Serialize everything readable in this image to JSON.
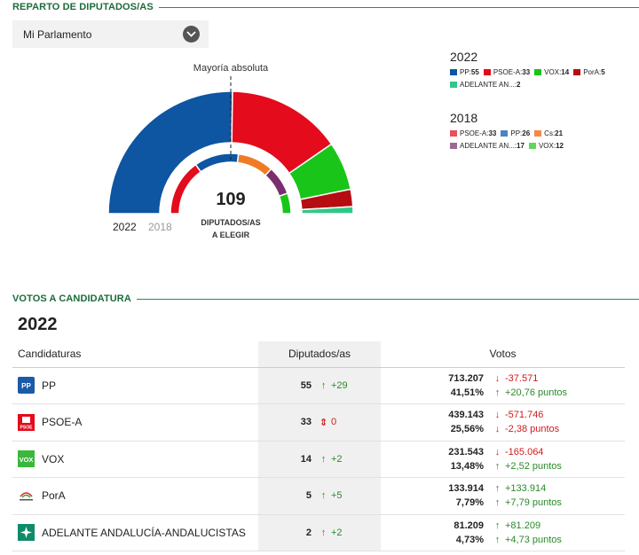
{
  "sections": {
    "seats_title": "REPARTO DE DIPUTADOS/AS",
    "votes_title": "VOTOS A CANDIDATURA"
  },
  "dropdown": {
    "label": "Mi Parlamento",
    "icon": "chevron-down-icon"
  },
  "hemicycle": {
    "majority_label": "Mayoría absoluta",
    "total_seats": "109",
    "center_line1": "DIPUTADOS/AS",
    "center_line2": "A ELEGIR",
    "outer_year": "2022",
    "inner_year": "2018"
  },
  "chart_data": {
    "type": "pie",
    "total_seats": 109,
    "rings": [
      {
        "year": "2022",
        "series": [
          {
            "name": "PP",
            "value": 55,
            "color": "#0e55a2"
          },
          {
            "name": "PSOE-A",
            "value": 33,
            "color": "#e30b1c"
          },
          {
            "name": "VOX",
            "value": 14,
            "color": "#19c519"
          },
          {
            "name": "PorA",
            "value": 5,
            "color": "#b50d12"
          },
          {
            "name": "ADELANTE ANDALUCÍA-ANDALUCISTAS",
            "value": 2,
            "color": "#2fc987"
          }
        ]
      },
      {
        "year": "2018",
        "series": [
          {
            "name": "PSOE-A",
            "value": 33,
            "color": "#e30b1c"
          },
          {
            "name": "PP",
            "value": 26,
            "color": "#0e55a2"
          },
          {
            "name": "Cs",
            "value": 21,
            "color": "#f07b25"
          },
          {
            "name": "ADELANTE ANDALUCÍA",
            "value": 17,
            "color": "#7b2d6f"
          },
          {
            "name": "VOX",
            "value": 12,
            "color": "#19c519"
          }
        ]
      }
    ]
  },
  "legend_2022": {
    "year": "2022",
    "items": [
      {
        "label": "PP",
        "seats": "55",
        "color": "#0e55a2"
      },
      {
        "label": "PSOE-A",
        "seats": "33",
        "color": "#e30b1c"
      },
      {
        "label": "VOX",
        "seats": "14",
        "color": "#19c519"
      },
      {
        "label": "PorA",
        "seats": "5",
        "color": "#b50d12"
      },
      {
        "label": "ADELANTE AN...",
        "seats": "2",
        "color": "#2fc987"
      }
    ]
  },
  "legend_2018": {
    "year": "2018",
    "items": [
      {
        "label": "PSOE-A",
        "seats": "33",
        "color": "#e8505b"
      },
      {
        "label": "PP",
        "seats": "26",
        "color": "#4a84c2"
      },
      {
        "label": "Cs",
        "seats": "21",
        "color": "#f5894a"
      },
      {
        "label": "ADELANTE AN...",
        "seats": "17",
        "color": "#9b6a95"
      },
      {
        "label": "VOX",
        "seats": "12",
        "color": "#5cd85c"
      }
    ]
  },
  "votes": {
    "year": "2022",
    "headers": {
      "party": "Candidaturas",
      "seats": "Diputados/as",
      "votes": "Votos"
    },
    "rows": [
      {
        "party": "PP",
        "logo": "pp-logo-icon",
        "seats": "55",
        "seats_delta": "+29",
        "seats_dir": "up",
        "votes": "713.207",
        "votes_delta": "-37.571",
        "votes_dir": "down",
        "pct": "41,51%",
        "pct_delta": "+20,76 puntos",
        "pct_dir": "up"
      },
      {
        "party": "PSOE-A",
        "logo": "psoe-logo-icon",
        "seats": "33",
        "seats_delta": "0",
        "seats_dir": "neutral",
        "votes": "439.143",
        "votes_delta": "-571.746",
        "votes_dir": "down",
        "pct": "25,56%",
        "pct_delta": "-2,38 puntos",
        "pct_dir": "down"
      },
      {
        "party": "VOX",
        "logo": "vox-logo-icon",
        "seats": "14",
        "seats_delta": "+2",
        "seats_dir": "up",
        "votes": "231.543",
        "votes_delta": "-165.064",
        "votes_dir": "down",
        "pct": "13,48%",
        "pct_delta": "+2,52 puntos",
        "pct_dir": "up"
      },
      {
        "party": "PorA",
        "logo": "pora-logo-icon",
        "seats": "5",
        "seats_delta": "+5",
        "seats_dir": "up",
        "votes": "133.914",
        "votes_delta": "+133.914",
        "votes_dir": "up",
        "pct": "7,79%",
        "pct_delta": "+7,79 puntos",
        "pct_dir": "up"
      },
      {
        "party": "ADELANTE ANDALUCÍA-ANDALUCISTAS",
        "logo": "adelante-logo-icon",
        "seats": "2",
        "seats_delta": "+2",
        "seats_dir": "up",
        "votes": "81.209",
        "votes_delta": "+81.209",
        "votes_dir": "up",
        "pct": "4,73%",
        "pct_delta": "+4,73 puntos",
        "pct_dir": "up"
      }
    ]
  }
}
